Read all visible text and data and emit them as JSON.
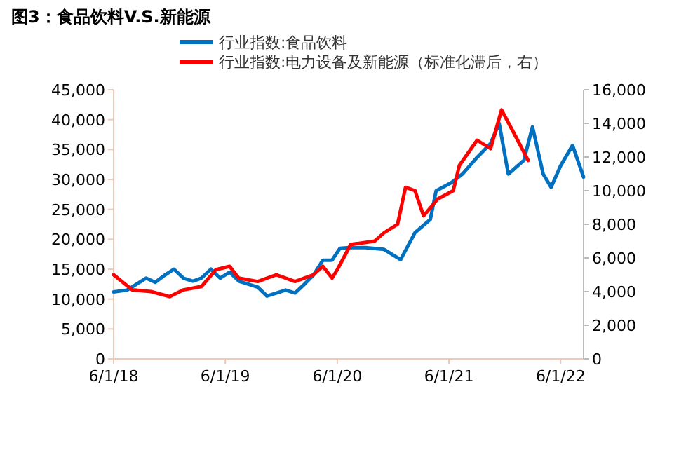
{
  "chart_data": {
    "type": "line",
    "title": "图3：食品饮料V.S.新能源",
    "legend": "top",
    "y2lim": [
      0,
      16000
    ],
    "y2ticks": [
      {
        "value": 0,
        "label": "0"
      },
      {
        "value": 2000,
        "label": "2,000"
      },
      {
        "value": 4000,
        "label": "4,000"
      },
      {
        "value": 6000,
        "label": "6,000"
      },
      {
        "value": 8000,
        "label": "8,000"
      },
      {
        "value": 10000,
        "label": "10,000"
      },
      {
        "value": 12000,
        "label": "12,000"
      },
      {
        "value": 14000,
        "label": "14,000"
      },
      {
        "value": 16000,
        "label": "16,000"
      }
    ],
    "ylim": [
      0,
      45000
    ],
    "yticks": [
      {
        "value": 0,
        "label": "0"
      },
      {
        "value": 5000,
        "label": "5,000"
      },
      {
        "value": 10000,
        "label": "10,000"
      },
      {
        "value": 15000,
        "label": "15,000"
      },
      {
        "value": 20000,
        "label": "20,000"
      },
      {
        "value": 25000,
        "label": "25,000"
      },
      {
        "value": 30000,
        "label": "30,000"
      },
      {
        "value": 35000,
        "label": "35,000"
      },
      {
        "value": 40000,
        "label": "40,000"
      },
      {
        "value": 45000,
        "label": "45,000"
      }
    ],
    "xlim": [
      "2018-06-01",
      "2022-08-15"
    ],
    "xticks": [
      {
        "value": "2018-06-01",
        "label": "6/1/18"
      },
      {
        "value": "2019-06-01",
        "label": "6/1/19"
      },
      {
        "value": "2020-06-01",
        "label": "6/1/20"
      },
      {
        "value": "2021-06-01",
        "label": "6/1/21"
      },
      {
        "value": "2022-06-01",
        "label": "6/1/22"
      }
    ],
    "series": [
      {
        "name": "行业指数:食品饮料",
        "color": "#0070c0",
        "x": [
          "2018-06-01",
          "2018-07-15",
          "2018-08-15",
          "2018-09-15",
          "2018-10-15",
          "2018-11-15",
          "2018-12-15",
          "2019-01-15",
          "2019-02-15",
          "2019-03-15",
          "2019-04-15",
          "2019-05-15",
          "2019-06-15",
          "2019-07-15",
          "2019-08-15",
          "2019-09-15",
          "2019-10-15",
          "2019-11-15",
          "2019-12-15",
          "2020-01-15",
          "2020-02-15",
          "2020-03-15",
          "2020-04-15",
          "2020-05-15",
          "2020-06-10",
          "2020-07-10",
          "2020-09-01",
          "2020-11-01",
          "2020-12-25",
          "2021-02-10",
          "2021-04-01",
          "2021-04-20",
          "2021-06-10",
          "2021-07-15",
          "2021-09-01",
          "2021-10-15",
          "2021-11-12",
          "2021-12-12",
          "2022-02-01",
          "2022-03-01",
          "2022-04-05",
          "2022-05-01",
          "2022-06-01",
          "2022-07-10",
          "2022-08-15"
        ],
        "values": [
          11200,
          11500,
          12500,
          13500,
          12800,
          14000,
          15000,
          13500,
          13000,
          13500,
          15000,
          13500,
          14500,
          13000,
          12500,
          12000,
          10500,
          11000,
          11500,
          11000,
          12500,
          14000,
          16500,
          16500,
          18500,
          18600,
          18600,
          18300,
          16600,
          21100,
          23300,
          28100,
          29500,
          30900,
          33700,
          36000,
          39400,
          30900,
          33200,
          38800,
          30900,
          28700,
          32300,
          35700,
          30400
        ]
      },
      {
        "name": "行业指数:电力设备及新能源（标准化滞后，右）",
        "color": "#ff0000",
        "axis": "y2",
        "x": [
          "2018-06-01",
          "2018-08-01",
          "2018-10-01",
          "2018-12-01",
          "2019-01-15",
          "2019-03-15",
          "2019-05-01",
          "2019-06-15",
          "2019-07-15",
          "2019-09-15",
          "2019-11-15",
          "2020-01-15",
          "2020-03-15",
          "2020-04-15",
          "2020-05-15",
          "2020-06-01",
          "2020-07-15",
          "2020-10-01",
          "2020-11-01",
          "2020-12-15",
          "2021-01-10",
          "2021-02-10",
          "2021-03-10",
          "2021-04-25",
          "2021-06-15",
          "2021-07-05",
          "2021-09-01",
          "2021-10-15",
          "2021-11-20",
          "2021-12-28",
          "2022-02-15"
        ],
        "values": [
          5000,
          4100,
          4000,
          3700,
          4100,
          4300,
          5300,
          5500,
          4800,
          4600,
          5000,
          4600,
          5000,
          5500,
          4800,
          5300,
          6800,
          7000,
          7500,
          8000,
          10200,
          10000,
          8500,
          9500,
          10000,
          11500,
          13000,
          12500,
          14800,
          13500,
          11800
        ]
      }
    ]
  }
}
